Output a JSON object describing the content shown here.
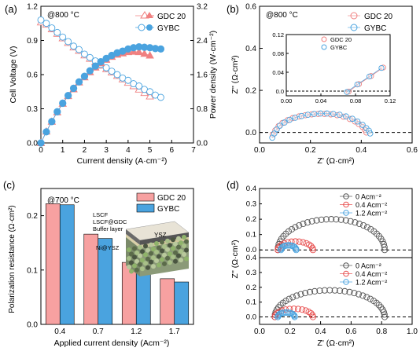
{
  "chart_data": [
    {
      "panel_label": "(a)",
      "type": "line",
      "annotation": "@800 °C",
      "xlabel": "Current density (A·cm⁻²)",
      "ylabel": "Cell Voltage (V)",
      "y2label": "Power density (W·cm⁻²)",
      "xlim": [
        0,
        7
      ],
      "ylim": [
        0,
        1.2
      ],
      "y2lim": [
        0,
        3.2
      ],
      "xticks": [
        "0",
        "1",
        "2",
        "3",
        "4",
        "5",
        "6",
        "7"
      ],
      "yticks": [
        "0.0",
        "0.3",
        "0.6",
        "0.9",
        "1.2"
      ],
      "y2ticks": [
        "0.0",
        "0.8",
        "1.6",
        "2.4",
        "3.2"
      ],
      "legend": [
        "GDC 20",
        "GYBC"
      ],
      "series": [
        {
          "name": "GDC 20",
          "axis": "left",
          "marker": "triangle-open",
          "color": "#f08080",
          "x": [
            0,
            0.25,
            0.5,
            0.75,
            1,
            1.25,
            1.5,
            1.75,
            2,
            2.25,
            2.5,
            2.75,
            3,
            3.25,
            3.5,
            3.75,
            4,
            4.25,
            4.5,
            4.75,
            5
          ],
          "y": [
            1.06,
            1.04,
            1.0,
            0.96,
            0.92,
            0.88,
            0.84,
            0.81,
            0.77,
            0.74,
            0.71,
            0.68,
            0.65,
            0.62,
            0.59,
            0.56,
            0.53,
            0.5,
            0.47,
            0.44,
            0.41
          ]
        },
        {
          "name": "GYBC",
          "axis": "left",
          "marker": "circle-open",
          "color": "#4aa3df",
          "x": [
            0,
            0.25,
            0.5,
            0.75,
            1,
            1.25,
            1.5,
            1.75,
            2,
            2.25,
            2.5,
            2.75,
            3,
            3.25,
            3.5,
            3.75,
            4,
            4.25,
            4.5,
            4.75,
            5,
            5.25,
            5.5
          ],
          "y": [
            1.08,
            1.05,
            1.01,
            0.97,
            0.93,
            0.89,
            0.85,
            0.82,
            0.78,
            0.75,
            0.72,
            0.69,
            0.66,
            0.63,
            0.6,
            0.57,
            0.55,
            0.52,
            0.5,
            0.47,
            0.45,
            0.42,
            0.4
          ]
        },
        {
          "name": "GDC 20",
          "axis": "right",
          "marker": "triangle-filled",
          "color": "#f08080",
          "x": [
            0,
            0.25,
            0.5,
            0.75,
            1,
            1.25,
            1.5,
            1.75,
            2,
            2.25,
            2.5,
            2.75,
            3,
            3.25,
            3.5,
            3.75,
            4,
            4.25,
            4.5,
            4.75,
            5
          ],
          "y": [
            0,
            0.27,
            0.5,
            0.72,
            0.92,
            1.1,
            1.26,
            1.42,
            1.54,
            1.66,
            1.77,
            1.87,
            1.95,
            2.02,
            2.07,
            2.1,
            2.13,
            2.14,
            2.13,
            2.09,
            2.05
          ]
        },
        {
          "name": "GYBC",
          "axis": "right",
          "marker": "hexagon-filled",
          "color": "#4aa3df",
          "x": [
            0,
            0.25,
            0.5,
            0.75,
            1,
            1.25,
            1.5,
            1.75,
            2,
            2.25,
            2.5,
            2.75,
            3,
            3.25,
            3.5,
            3.75,
            4,
            4.25,
            4.5,
            4.75,
            5,
            5.25,
            5.5
          ],
          "y": [
            0,
            0.26,
            0.5,
            0.73,
            0.93,
            1.11,
            1.28,
            1.43,
            1.56,
            1.69,
            1.8,
            1.9,
            1.98,
            2.05,
            2.11,
            2.15,
            2.2,
            2.23,
            2.25,
            2.24,
            2.23,
            2.21,
            2.2
          ]
        }
      ]
    },
    {
      "panel_label": "(b)",
      "type": "scatter",
      "annotation": "@800 °C",
      "xlabel": "Z' (Ω·cm²)",
      "ylabel": "Z'' (Ω·cm²)",
      "xlim": [
        0,
        0.6
      ],
      "ylim": [
        -0.05,
        0.6
      ],
      "xticks": [
        "0.0",
        "0.2",
        "0.4",
        "0.6"
      ],
      "yticks": [
        "0.0",
        "0.2",
        "0.4",
        "0.6"
      ],
      "legend": [
        "GDC 20",
        "GYBC"
      ],
      "series": [
        {
          "name": "GDC 20",
          "color": "#f08080",
          "x": [
            0.052,
            0.062,
            0.075,
            0.09,
            0.11,
            0.13,
            0.155,
            0.18,
            0.205,
            0.23,
            0.255,
            0.28,
            0.305,
            0.33,
            0.355,
            0.375,
            0.39,
            0.405,
            0.415,
            0.42
          ],
          "y": [
            -0.01,
            0.01,
            0.03,
            0.045,
            0.058,
            0.068,
            0.076,
            0.082,
            0.086,
            0.088,
            0.088,
            0.086,
            0.082,
            0.075,
            0.064,
            0.052,
            0.04,
            0.026,
            0.012,
            0.0
          ]
        },
        {
          "name": "GYBC",
          "color": "#4aa3df",
          "x": [
            0.05,
            0.058,
            0.068,
            0.08,
            0.098,
            0.118,
            0.14,
            0.165,
            0.19,
            0.215,
            0.24,
            0.265,
            0.29,
            0.315,
            0.34,
            0.365,
            0.385,
            0.405,
            0.42,
            0.43,
            0.435
          ],
          "y": [
            -0.025,
            -0.005,
            0.015,
            0.032,
            0.047,
            0.06,
            0.07,
            0.078,
            0.084,
            0.088,
            0.09,
            0.09,
            0.088,
            0.084,
            0.076,
            0.065,
            0.052,
            0.036,
            0.02,
            0.008,
            -0.005
          ]
        }
      ],
      "inset": {
        "xlim": [
          0,
          0.12
        ],
        "ylim": [
          -0.01,
          0.12
        ],
        "xticks": [
          "0.00",
          "0.04",
          "0.08",
          "0.12"
        ],
        "yticks": [
          "0.0",
          "0.04",
          "0.08",
          "0.12"
        ],
        "legend": [
          "GDC 20",
          "GYBC"
        ],
        "series": [
          {
            "name": "GDC 20",
            "color": "#f08080",
            "x": [
              0.072,
              0.084,
              0.098,
              0.112
            ],
            "y": [
              -0.001,
              0.015,
              0.032,
              0.05
            ]
          },
          {
            "name": "GYBC",
            "color": "#4aa3df",
            "x": [
              0.07,
              0.082,
              0.096,
              0.11
            ],
            "y": [
              -0.002,
              0.014,
              0.031,
              0.049
            ]
          }
        ]
      }
    },
    {
      "panel_label": "(c)",
      "type": "bar",
      "annotation": "@700 °C",
      "xlabel": "Applied current density (Acm⁻²)",
      "ylabel": "Polarization resistance (Ω·cm²)",
      "categories": [
        "0.4",
        "0.7",
        "1.2",
        "1.7"
      ],
      "ylim": [
        0,
        0.25
      ],
      "yticks": [
        "0.0",
        "0.1",
        "0.2"
      ],
      "legend": [
        "GDC 20",
        "GYBC"
      ],
      "series": [
        {
          "name": "GDC 20",
          "color": "#f7a1a1",
          "values": [
            0.222,
            0.166,
            0.114,
            0.084
          ]
        },
        {
          "name": "GYBC",
          "color": "#4aa3df",
          "values": [
            0.22,
            0.158,
            0.108,
            0.078
          ]
        }
      ],
      "inset_labels": [
        "LSCF",
        "LSCF@GDC",
        "Buffer layer",
        "YSZ",
        "Ni@YSZ"
      ]
    },
    {
      "panel_label": "(d)",
      "type": "scatter",
      "xlabel": "Z' (Ω·cm²)",
      "ylabel": "Z'' (Ω·cm²)",
      "xlim": [
        0,
        1.0
      ],
      "xticks": [
        "0.0",
        "0.2",
        "0.4",
        "0.6",
        "0.8",
        "1.0"
      ],
      "ylim": [
        -0.05,
        0.4
      ],
      "yticks": [
        "0.0",
        "0.1",
        "0.2",
        "0.3",
        "0.4"
      ],
      "legend": [
        "0 Acm⁻²",
        "0.4 Acm⁻²",
        "1.2 Acm⁻²"
      ],
      "top_series": [
        {
          "name": "0 Acm⁻²",
          "color": "#555555",
          "r0": 0.12,
          "r1": 0.82,
          "peak": 0.2
        },
        {
          "name": "0.4 Acm⁻²",
          "color": "#e84d4d",
          "r0": 0.12,
          "r1": 0.35,
          "peak": 0.055
        },
        {
          "name": "1.2 Acm⁻²",
          "color": "#4aa3df",
          "r0": 0.14,
          "r1": 0.24,
          "peak": 0.03
        }
      ],
      "bottom_series": [
        {
          "name": "0 Acm⁻²",
          "color": "#555555",
          "r0": 0.1,
          "r1": 0.82,
          "peak": 0.18
        },
        {
          "name": "0.4 Acm⁻²",
          "color": "#e84d4d",
          "r0": 0.1,
          "r1": 0.35,
          "peak": 0.055
        },
        {
          "name": "1.2 Acm⁻²",
          "color": "#4aa3df",
          "r0": 0.12,
          "r1": 0.23,
          "peak": 0.03
        }
      ]
    }
  ]
}
